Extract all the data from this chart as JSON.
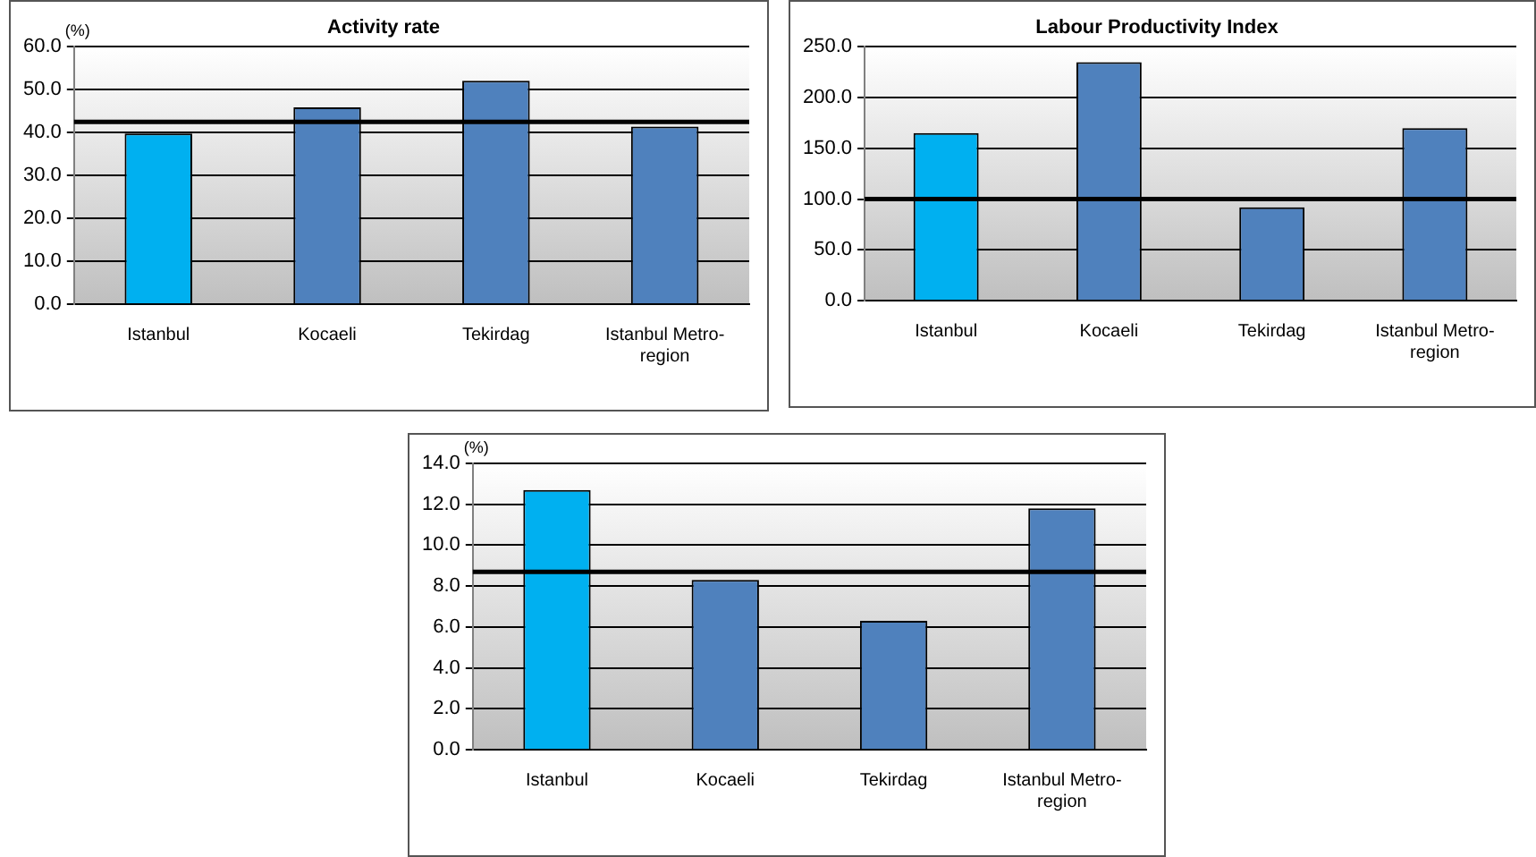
{
  "chart_data": [
    {
      "type": "bar",
      "title": "Activity rate",
      "ylabel": "(%)",
      "categories": [
        "Istanbul",
        "Kocaeli",
        "Tekirdag",
        "Istanbul Metro-region"
      ],
      "values": [
        39.8,
        45.9,
        52.1,
        41.4
      ],
      "colors": [
        "#00b0f0",
        "#4f81bd",
        "#4f81bd",
        "#4f81bd"
      ],
      "ylim": [
        0,
        60
      ],
      "yticks": [
        {
          "value": 0,
          "label": "0.0"
        },
        {
          "value": 10,
          "label": "10.0"
        },
        {
          "value": 20,
          "label": "20.0"
        },
        {
          "value": 30,
          "label": "30.0"
        },
        {
          "value": 40,
          "label": "40.0"
        },
        {
          "value": 50,
          "label": "50.0"
        },
        {
          "value": 60,
          "label": "60.0"
        }
      ],
      "grid": "y",
      "legend": false,
      "ref_lines": [
        {
          "axis": "y",
          "value": 42.5,
          "color": "#000000"
        }
      ]
    },
    {
      "type": "bar",
      "title": "Labour Productivity Index",
      "categories": [
        "Istanbul",
        "Kocaeli",
        "Tekirdag",
        "Istanbul Metro-region"
      ],
      "values": [
        165,
        235,
        92,
        170
      ],
      "colors": [
        "#00b0f0",
        "#4f81bd",
        "#4f81bd",
        "#4f81bd"
      ],
      "ylim": [
        0,
        250
      ],
      "yticks": [
        {
          "value": 0,
          "label": "0.0"
        },
        {
          "value": 50,
          "label": "50.0"
        },
        {
          "value": 100,
          "label": "100.0"
        },
        {
          "value": 150,
          "label": "150.0"
        },
        {
          "value": 200,
          "label": "200.0"
        },
        {
          "value": 250,
          "label": "250.0"
        }
      ],
      "grid": "y",
      "legend": false,
      "ref_lines": [
        {
          "axis": "y",
          "value": 100,
          "color": "#000000"
        }
      ]
    },
    {
      "type": "bar",
      "ylabel": "(%)",
      "categories": [
        "Istanbul",
        "Kocaeli",
        "Tekirdag",
        "Istanbul Metro-region"
      ],
      "values": [
        12.7,
        8.3,
        6.3,
        11.8
      ],
      "colors": [
        "#00b0f0",
        "#4f81bd",
        "#4f81bd",
        "#4f81bd"
      ],
      "ylim": [
        0,
        14
      ],
      "yticks": [
        {
          "value": 0,
          "label": "0.0"
        },
        {
          "value": 2,
          "label": "2.0"
        },
        {
          "value": 4,
          "label": "4.0"
        },
        {
          "value": 6,
          "label": "6.0"
        },
        {
          "value": 8,
          "label": "8.0"
        },
        {
          "value": 10,
          "label": "10.0"
        },
        {
          "value": 12,
          "label": "12.0"
        },
        {
          "value": 14,
          "label": "14.0"
        }
      ],
      "grid": "y",
      "legend": false,
      "ref_lines": [
        {
          "axis": "y",
          "value": 8.7,
          "color": "#000000"
        }
      ]
    }
  ]
}
